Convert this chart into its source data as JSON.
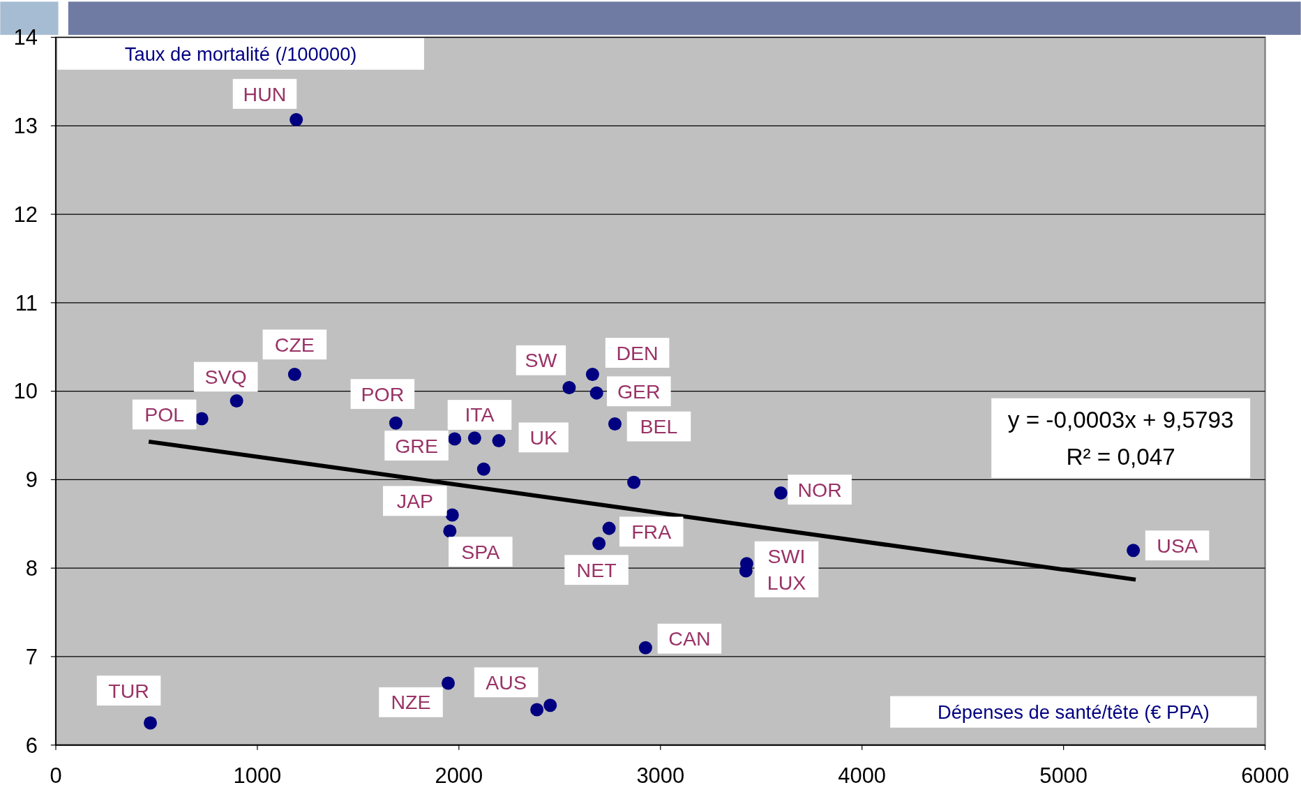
{
  "chart_data": {
    "type": "scatter",
    "xlabel": "Dépenses de santé/tête (€ PPA)",
    "ylabel": "Taux de mortalité (/100000)",
    "xlim": [
      0,
      6000
    ],
    "xticks": [
      0,
      1000,
      2000,
      3000,
      4000,
      5000,
      6000
    ],
    "ylim": [
      6,
      14
    ],
    "yticks": [
      6,
      7,
      8,
      9,
      10,
      11,
      12,
      13,
      14
    ],
    "grid": "y",
    "series": [
      {
        "marker": "circle",
        "color": "#000080",
        "x": [
          1193,
          1185,
          897,
          724,
          1687,
          1979,
          2078,
          2198,
          2123,
          2547,
          2663,
          2683,
          2774,
          2868,
          3597,
          5346,
          1967,
          1955,
          2745,
          2695,
          3428,
          3424,
          2926,
          1947,
          2387,
          2453,
          469
        ],
        "values": [
          13.07,
          10.19,
          9.89,
          9.69,
          9.64,
          9.46,
          9.47,
          9.44,
          9.12,
          10.04,
          10.19,
          9.98,
          9.63,
          8.97,
          8.85,
          8.2,
          8.6,
          8.42,
          8.45,
          8.28,
          8.05,
          7.97,
          7.1,
          6.7,
          6.4,
          6.45,
          6.25
        ]
      },
      {
        "type": "line",
        "color": "#000000",
        "x": [
          461,
          5358
        ],
        "values": [
          9.43,
          7.87
        ]
      }
    ],
    "annotations": [
      {
        "text": "HUN",
        "x": 1193,
        "y": 13.07
      },
      {
        "text": "CZE",
        "x": 1185,
        "y": 10.19
      },
      {
        "text": "SVQ",
        "x": 897,
        "y": 9.89
      },
      {
        "text": "POL",
        "x": 724,
        "y": 9.69
      },
      {
        "text": "POR",
        "x": 1687,
        "y": 9.64
      },
      {
        "text": "GRE",
        "x": 1979,
        "y": 9.46
      },
      {
        "text": "ITA",
        "x": 2078,
        "y": 9.47
      },
      {
        "text": "UK",
        "x": 2198,
        "y": 9.44
      },
      {
        "text": "SW",
        "x": 2547,
        "y": 10.04
      },
      {
        "text": "DEN",
        "x": 2663,
        "y": 10.19
      },
      {
        "text": "GER",
        "x": 2683,
        "y": 9.98
      },
      {
        "text": "BEL",
        "x": 2774,
        "y": 9.63
      },
      {
        "text": "NOR",
        "x": 3597,
        "y": 8.85
      },
      {
        "text": "USA",
        "x": 5346,
        "y": 8.2
      },
      {
        "text": "JAP",
        "x": 1967,
        "y": 8.6
      },
      {
        "text": "SPA",
        "x": 1955,
        "y": 8.42
      },
      {
        "text": "FRA",
        "x": 2745,
        "y": 8.45
      },
      {
        "text": "NET",
        "x": 2695,
        "y": 8.28
      },
      {
        "text": "SWI",
        "x": 3428,
        "y": 8.05
      },
      {
        "text": "LUX",
        "x": 3424,
        "y": 7.97
      },
      {
        "text": "CAN",
        "x": 2926,
        "y": 7.1
      },
      {
        "text": "NZE",
        "x": 1947,
        "y": 6.7
      },
      {
        "text": "AUS",
        "x": 2387,
        "y": 6.4
      },
      {
        "text": "TUR",
        "x": 469,
        "y": 6.25
      },
      "y = -0,0003x + 9,5793",
      "R² = 0,047"
    ]
  }
}
